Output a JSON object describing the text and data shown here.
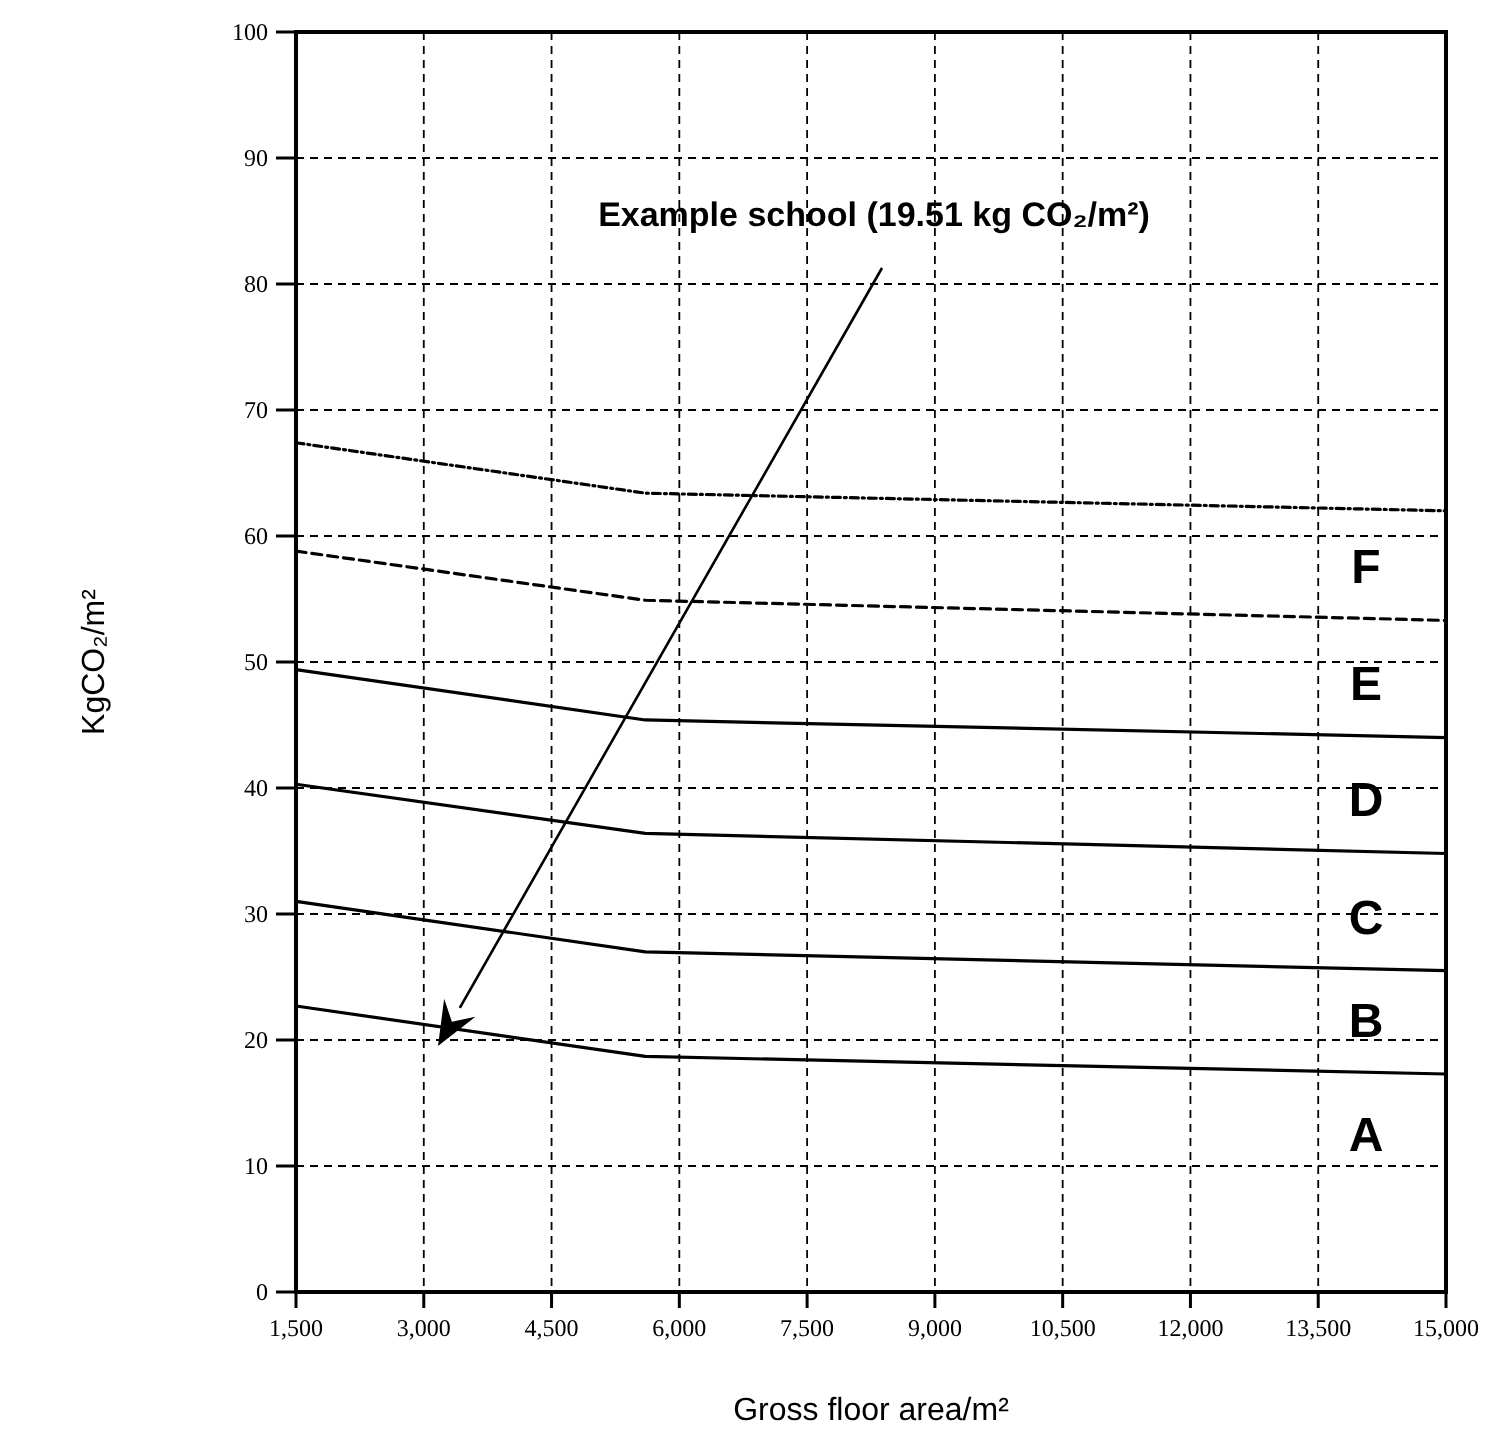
{
  "chart_data": {
    "type": "line",
    "xlabel": "Gross floor area/m²",
    "ylabel": "KgCO₂/m²",
    "x": [
      1500,
      5600,
      15000
    ],
    "series": [
      {
        "color": "#000000",
        "values": [
          22.7,
          18.7,
          17.3
        ],
        "line_style": "solid"
      },
      {
        "color": "#000000",
        "values": [
          31.0,
          27.0,
          25.5
        ],
        "line_style": "solid"
      },
      {
        "color": "#000000",
        "values": [
          40.3,
          36.4,
          34.8
        ],
        "line_style": "solid"
      },
      {
        "color": "#000000",
        "values": [
          49.4,
          45.4,
          44.0
        ],
        "line_style": "solid"
      },
      {
        "color": "#000000",
        "values": [
          58.8,
          54.9,
          53.3
        ],
        "line_style": "dashed"
      },
      {
        "color": "#000000",
        "values": [
          67.4,
          63.4,
          62.0
        ],
        "line_style": "dotted"
      }
    ],
    "xlim": [
      1500,
      15000
    ],
    "xticks": [
      {
        "value": 1500,
        "label": "1,500"
      },
      {
        "value": 3000,
        "label": "3,000"
      },
      {
        "value": 4500,
        "label": "4,500"
      },
      {
        "value": 6000,
        "label": "6,000"
      },
      {
        "value": 7500,
        "label": "7,500"
      },
      {
        "value": 9000,
        "label": "9,000"
      },
      {
        "value": 10500,
        "label": "10,500"
      },
      {
        "value": 12000,
        "label": "12,000"
      },
      {
        "value": 13500,
        "label": "13,500"
      },
      {
        "value": 15000,
        "label": "15,000"
      }
    ],
    "ylim": [
      0,
      100
    ],
    "yticks": [
      0,
      10,
      20,
      30,
      40,
      50,
      60,
      70,
      80,
      90,
      100
    ],
    "grid": true,
    "marker": "none",
    "annotations": [
      "Example school (19.51 kg CO₂/m²)",
      "A",
      "B",
      "C",
      "D",
      "E",
      "F"
    ]
  }
}
